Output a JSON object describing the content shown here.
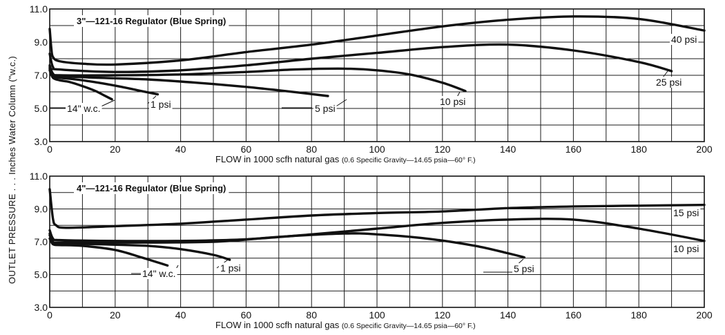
{
  "ylabel": "OUTLET PRESSURE . . . Inches Water Column (\"w.c.)",
  "chart_data": [
    {
      "type": "line",
      "title": "3\"—121-16 Regulator (Blue Spring)",
      "xlabel_main": "FLOW in 1000 scfh natural gas",
      "xlabel_note": "(0.6 Specific Gravity—14.65 psia—60° F.)",
      "xlim": [
        0,
        200
      ],
      "ylim": [
        3.0,
        11.0
      ],
      "xticks": [
        "0",
        "20",
        "40",
        "60",
        "80",
        "100",
        "120",
        "140",
        "160",
        "180",
        "200"
      ],
      "yticks": [
        "3.0",
        "5.0",
        "7.0",
        "9.0",
        "11.0"
      ],
      "grid": true,
      "series": [
        {
          "name": "14\" w.c.",
          "label_text": "14\" w.c.",
          "x": [
            0,
            1,
            3,
            6,
            10,
            14,
            17,
            19
          ],
          "y": [
            7.3,
            6.85,
            6.7,
            6.6,
            6.35,
            6.05,
            5.75,
            5.55
          ]
        },
        {
          "name": "1 psi",
          "label_text": "1 psi",
          "x": [
            0,
            1,
            3,
            8,
            15,
            22,
            28,
            33
          ],
          "y": [
            7.4,
            6.95,
            6.85,
            6.75,
            6.55,
            6.3,
            6.05,
            5.85
          ]
        },
        {
          "name": "5 psi",
          "label_text": "5 psi",
          "x": [
            0,
            1,
            3,
            15,
            30,
            45,
            60,
            72,
            85
          ],
          "y": [
            7.5,
            7.05,
            6.95,
            6.85,
            6.75,
            6.55,
            6.3,
            6.05,
            5.75
          ]
        },
        {
          "name": "10 psi",
          "label_text": "10 psi",
          "x": [
            0,
            1,
            3,
            20,
            40,
            60,
            75,
            90,
            100,
            110,
            120,
            127
          ],
          "y": [
            7.6,
            7.1,
            7.0,
            7.0,
            7.05,
            7.2,
            7.35,
            7.4,
            7.3,
            7.05,
            6.55,
            6.05
          ]
        },
        {
          "name": "25 psi",
          "label_text": "25 psi",
          "x": [
            0,
            1,
            3,
            20,
            40,
            60,
            80,
            100,
            120,
            140,
            160,
            180,
            190
          ],
          "y": [
            8.3,
            7.5,
            7.35,
            7.2,
            7.3,
            7.6,
            8.0,
            8.35,
            8.7,
            8.85,
            8.5,
            7.8,
            7.25
          ]
        },
        {
          "name": "40 psi",
          "label_text": "40 psi",
          "x": [
            0,
            0.5,
            1,
            3,
            10,
            20,
            40,
            60,
            80,
            100,
            120,
            140,
            160,
            180,
            200
          ],
          "y": [
            9.8,
            8.6,
            8.1,
            7.85,
            7.7,
            7.65,
            7.9,
            8.4,
            8.85,
            9.4,
            9.95,
            10.35,
            10.55,
            10.4,
            9.7
          ]
        }
      ]
    },
    {
      "type": "line",
      "title": "4\"—121-16 Regulator (Blue Spring)",
      "xlabel_main": "FLOW in 1000 scfh natural gas",
      "xlabel_note": "(0.6 Specific Gravity—14.65 psia—60° F.)",
      "xlim": [
        0,
        200
      ],
      "ylim": [
        3.0,
        11.0
      ],
      "xticks": [
        "0",
        "20",
        "40",
        "60",
        "80",
        "100",
        "120",
        "140",
        "160",
        "180",
        "200"
      ],
      "yticks": [
        "3.0",
        "5.0",
        "7.0",
        "9.0",
        "11.0"
      ],
      "grid": true,
      "series": [
        {
          "name": "14\" w.c.",
          "label_text": "14\" w.c.",
          "x": [
            0,
            1,
            3,
            10,
            20,
            28,
            36
          ],
          "y": [
            7.2,
            6.85,
            6.8,
            6.75,
            6.5,
            6.05,
            5.55
          ]
        },
        {
          "name": "1 psi",
          "label_text": "1 psi",
          "x": [
            0,
            1,
            3,
            15,
            30,
            40,
            50,
            55
          ],
          "y": [
            7.4,
            6.95,
            6.9,
            6.85,
            6.75,
            6.55,
            6.2,
            5.9
          ]
        },
        {
          "name": "5 psi",
          "label_text": "5 psi",
          "x": [
            0,
            1,
            3,
            20,
            50,
            70,
            90,
            100,
            115,
            130,
            140,
            145
          ],
          "y": [
            7.5,
            7.0,
            6.95,
            6.95,
            7.0,
            7.3,
            7.5,
            7.45,
            7.2,
            6.75,
            6.3,
            6.05
          ]
        },
        {
          "name": "10 psi",
          "label_text": "10 psi",
          "x": [
            0,
            1,
            3,
            20,
            40,
            60,
            80,
            100,
            120,
            140,
            160,
            180,
            200
          ],
          "y": [
            7.7,
            7.2,
            7.1,
            7.05,
            7.05,
            7.15,
            7.45,
            7.8,
            8.15,
            8.35,
            8.35,
            7.8,
            7.05
          ]
        },
        {
          "name": "15 psi",
          "label_text": "15 psi",
          "x": [
            0,
            1,
            2,
            5,
            20,
            40,
            60,
            80,
            100,
            120,
            140,
            160,
            180,
            200
          ],
          "y": [
            10.2,
            8.4,
            8.0,
            7.85,
            7.95,
            8.1,
            8.35,
            8.6,
            8.75,
            8.85,
            9.05,
            9.15,
            9.2,
            9.25
          ]
        }
      ]
    }
  ]
}
